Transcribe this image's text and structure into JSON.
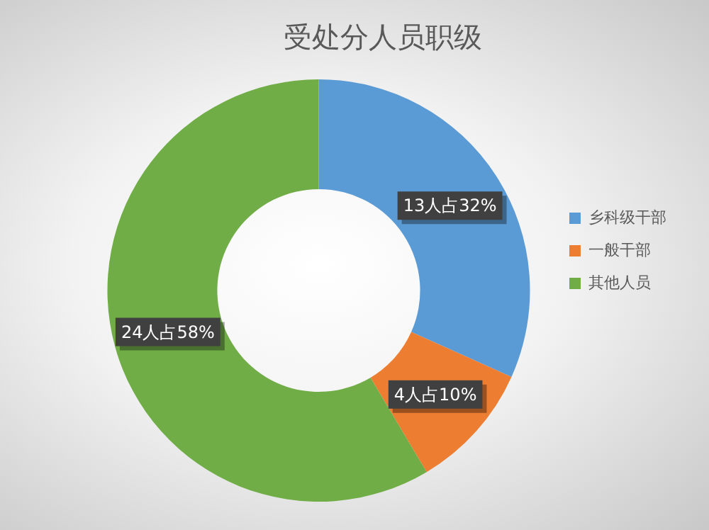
{
  "chart_data": {
    "type": "donut",
    "title": "受处分人员职级",
    "categories": [
      "乡科级干部",
      "一般干部",
      "其他人员"
    ],
    "values": [
      13,
      4,
      24
    ],
    "colors": [
      "#5b9bd5",
      "#ed7d31",
      "#70ad47"
    ],
    "value_labels": [
      "13人占32%",
      "4人占10%",
      "24人占58%"
    ],
    "legend": "right"
  }
}
